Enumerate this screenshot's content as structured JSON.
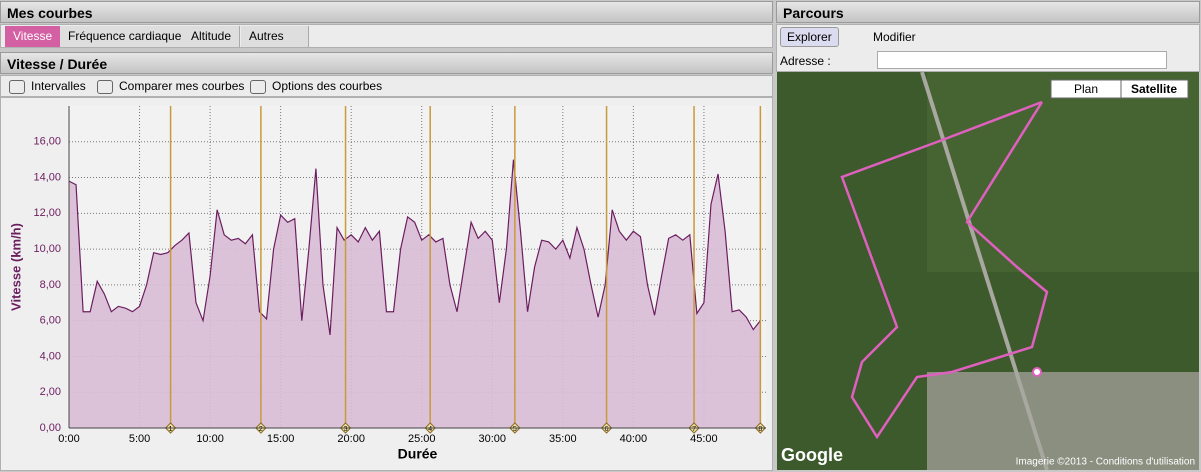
{
  "left_panel": {
    "title": "Mes courbes",
    "tabs": [
      "Vitesse",
      "Fréquence cardiaque",
      "Altitude",
      "Autres"
    ],
    "subtitle": "Vitesse / Durée",
    "toolbar": [
      "Intervalles",
      "Comparer mes courbes",
      "Options des courbes"
    ]
  },
  "chart_data": {
    "type": "area",
    "x_label": "Durée",
    "y_label": "Vitesse (km/h)",
    "x": [
      0,
      0.5,
      1,
      1.5,
      2,
      2.5,
      3,
      3.5,
      4,
      4.5,
      5,
      5.5,
      6,
      6.5,
      7,
      7.5,
      8,
      8.5,
      9,
      9.5,
      10,
      10.5,
      11,
      11.5,
      12,
      12.5,
      13,
      13.5,
      14,
      14.5,
      15,
      15.5,
      16,
      16.5,
      17,
      17.5,
      18,
      18.5,
      19,
      19.5,
      20,
      20.5,
      21,
      21.5,
      22,
      22.5,
      23,
      23.5,
      24,
      24.5,
      25,
      25.5,
      26,
      26.5,
      27,
      27.5,
      28,
      28.5,
      29,
      29.5,
      30,
      30.5,
      31,
      31.5,
      32,
      32.5,
      33,
      33.5,
      34,
      34.5,
      35,
      35.5,
      36,
      36.5,
      37,
      37.5,
      38,
      38.5,
      39,
      39.5,
      40,
      40.5,
      41,
      41.5,
      42,
      42.5,
      43,
      43.5,
      44,
      44.5,
      45,
      45.5,
      46,
      46.5,
      47,
      47.5,
      48,
      48.5,
      49
    ],
    "series": [
      {
        "name": "Vitesse",
        "color": "#6b1e5f",
        "fill": "#d9bcd5",
        "values": [
          13.8,
          13.6,
          6.5,
          6.5,
          8.2,
          7.5,
          6.5,
          6.8,
          6.7,
          6.5,
          6.8,
          8.0,
          9.8,
          9.7,
          9.8,
          10.2,
          10.5,
          10.9,
          7.0,
          6.0,
          8.5,
          12.2,
          10.8,
          10.5,
          10.6,
          10.3,
          10.8,
          6.5,
          6.1,
          10.0,
          11.9,
          11.5,
          11.7,
          6.0,
          10.0,
          14.5,
          8.0,
          5.2,
          11.2,
          10.5,
          10.8,
          10.4,
          11.2,
          10.5,
          11.0,
          6.5,
          6.5,
          10.0,
          11.8,
          11.5,
          10.5,
          10.8,
          10.4,
          10.6,
          8.0,
          6.5,
          9.0,
          11.5,
          10.6,
          11.0,
          10.5,
          7.0,
          10.0,
          15.0,
          11.0,
          6.5,
          9.0,
          10.5,
          10.4,
          10.0,
          10.5,
          9.5,
          11.2,
          10.0,
          8.0,
          6.2,
          8.0,
          12.2,
          11.0,
          10.5,
          11.0,
          10.7,
          8.0,
          6.3,
          8.5,
          10.6,
          10.8,
          10.5,
          10.8,
          6.4,
          7.0,
          12.5,
          14.2,
          11.0,
          6.5,
          6.6,
          6.2,
          5.5,
          6.0
        ]
      }
    ],
    "xlim": [
      0,
      49.4
    ],
    "ylim": [
      0,
      18
    ],
    "xticks": [
      {
        "value": 0,
        "label": "0:00"
      },
      {
        "value": 5,
        "label": "5:00"
      },
      {
        "value": 10,
        "label": "10:00"
      },
      {
        "value": 15,
        "label": "15:00"
      },
      {
        "value": 20,
        "label": "20:00"
      },
      {
        "value": 25,
        "label": "25:00"
      },
      {
        "value": 30,
        "label": "30:00"
      },
      {
        "value": 35,
        "label": "35:00"
      },
      {
        "value": 40,
        "label": "40:00"
      },
      {
        "value": 45,
        "label": "45:00"
      }
    ],
    "yticks": [
      {
        "value": 0,
        "label": "0,00"
      },
      {
        "value": 2,
        "label": "2,00"
      },
      {
        "value": 4,
        "label": "4,00"
      },
      {
        "value": 6,
        "label": "6,00"
      },
      {
        "value": 8,
        "label": "8,00"
      },
      {
        "value": 10,
        "label": "10,00"
      },
      {
        "value": 12,
        "label": "12,00"
      },
      {
        "value": 14,
        "label": "14,00"
      },
      {
        "value": 16,
        "label": "16,00"
      }
    ],
    "grid": true,
    "interval_markers": [
      {
        "value": 7.2,
        "label": "1"
      },
      {
        "value": 13.6,
        "label": "2"
      },
      {
        "value": 19.6,
        "label": "3"
      },
      {
        "value": 25.6,
        "label": "4"
      },
      {
        "value": 31.6,
        "label": "5"
      },
      {
        "value": 38.1,
        "label": "6"
      },
      {
        "value": 44.3,
        "label": "7"
      },
      {
        "value": 49.0,
        "label": "8"
      }
    ],
    "marker_color": "#c89a3a"
  },
  "map_panel": {
    "title": "Parcours",
    "tools": [
      "Explorer",
      "Modifier"
    ],
    "address_label": "Adresse :",
    "map_types": [
      "Plan",
      "Satellite"
    ],
    "logo": "Google",
    "copyright": "Imagerie ©2013 - Conditions d'utilisation"
  }
}
